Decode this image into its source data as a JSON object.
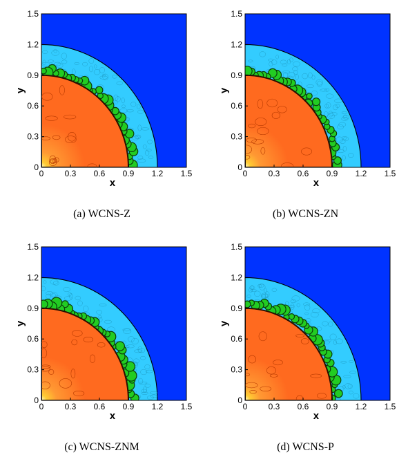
{
  "figure": {
    "panels": [
      {
        "id": "a",
        "caption": "(a) WCNS-Z"
      },
      {
        "id": "b",
        "caption": "(b) WCNS-ZN"
      },
      {
        "id": "c",
        "caption": "(c) WCNS-ZNM"
      },
      {
        "id": "d",
        "caption": "(d) WCNS-P"
      }
    ],
    "xlabel": "x",
    "ylabel": "y",
    "xticks": [
      "0",
      "0.3",
      "0.6",
      "0.9",
      "1.2",
      "1.5"
    ],
    "yticks": [
      "0",
      "0.3",
      "0.6",
      "0.9",
      "1.2",
      "1.5"
    ],
    "xlim": [
      0,
      1.5
    ],
    "ylim": [
      0,
      1.5
    ],
    "shock_radius": 1.2,
    "interface_radius": 0.92,
    "colors": {
      "background": "#0033ff",
      "shocked_gas": "#33ccff",
      "inner_gas": "#ff6a1f",
      "core": "#ffcc33",
      "mixing": "#22cc22"
    }
  }
}
